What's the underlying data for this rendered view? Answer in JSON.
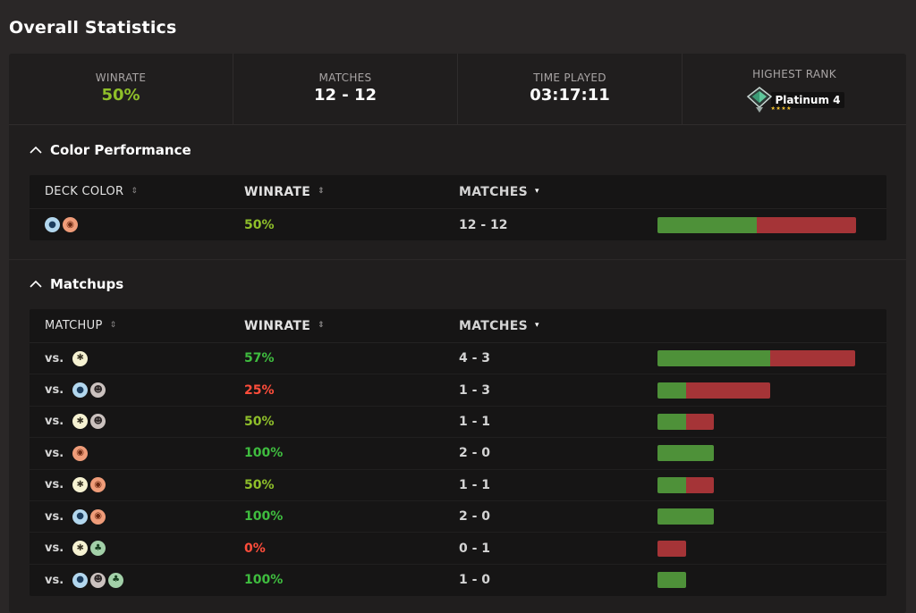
{
  "page_title": "Overall Statistics",
  "summary": {
    "winrate": {
      "label": "WINRATE",
      "value": "50%"
    },
    "matches": {
      "label": "MATCHES",
      "value": "12 - 12"
    },
    "time_played": {
      "label": "TIME PLAYED",
      "value": "03:17:11"
    },
    "highest_rank": {
      "label": "HIGHEST RANK",
      "value": "Platinum 4",
      "stars": "★★★★"
    }
  },
  "colors": {
    "win": "#4e9139",
    "loss": "#a53437",
    "good_rate": "#8fbf2a",
    "great_rate": "#3fbd3f",
    "bad_rate": "#ff4d3b"
  },
  "color_performance": {
    "title": "Color Performance",
    "headers": {
      "col1": "DECK COLOR",
      "col2": "WINRATE",
      "col3": "MATCHES"
    },
    "rows": [
      {
        "colors": [
          "blue",
          "red"
        ],
        "winrate": "50%",
        "rate_class": "good",
        "matches": "12 - 12",
        "wins": 12,
        "losses": 12
      }
    ]
  },
  "matchups": {
    "title": "Matchups",
    "headers": {
      "col1": "MATCHUP",
      "col2": "WINRATE",
      "col3": "MATCHES"
    },
    "vs_label": "vs.",
    "rows": [
      {
        "colors": [
          "white"
        ],
        "winrate": "57%",
        "rate_class": "great",
        "matches": "4 - 3",
        "wins": 4,
        "losses": 3
      },
      {
        "colors": [
          "blue",
          "black"
        ],
        "winrate": "25%",
        "rate_class": "bad",
        "matches": "1 - 3",
        "wins": 1,
        "losses": 3
      },
      {
        "colors": [
          "white",
          "black"
        ],
        "winrate": "50%",
        "rate_class": "good",
        "matches": "1 - 1",
        "wins": 1,
        "losses": 1
      },
      {
        "colors": [
          "red"
        ],
        "winrate": "100%",
        "rate_class": "great",
        "matches": "2 - 0",
        "wins": 2,
        "losses": 0
      },
      {
        "colors": [
          "white",
          "red"
        ],
        "winrate": "50%",
        "rate_class": "good",
        "matches": "1 - 1",
        "wins": 1,
        "losses": 1
      },
      {
        "colors": [
          "blue",
          "red"
        ],
        "winrate": "100%",
        "rate_class": "great",
        "matches": "2 - 0",
        "wins": 2,
        "losses": 0
      },
      {
        "colors": [
          "white",
          "green"
        ],
        "winrate": "0%",
        "rate_class": "bad",
        "matches": "0 - 1",
        "wins": 0,
        "losses": 1
      },
      {
        "colors": [
          "blue",
          "black",
          "green"
        ],
        "winrate": "100%",
        "rate_class": "great",
        "matches": "1 - 0",
        "wins": 1,
        "losses": 0
      }
    ]
  }
}
